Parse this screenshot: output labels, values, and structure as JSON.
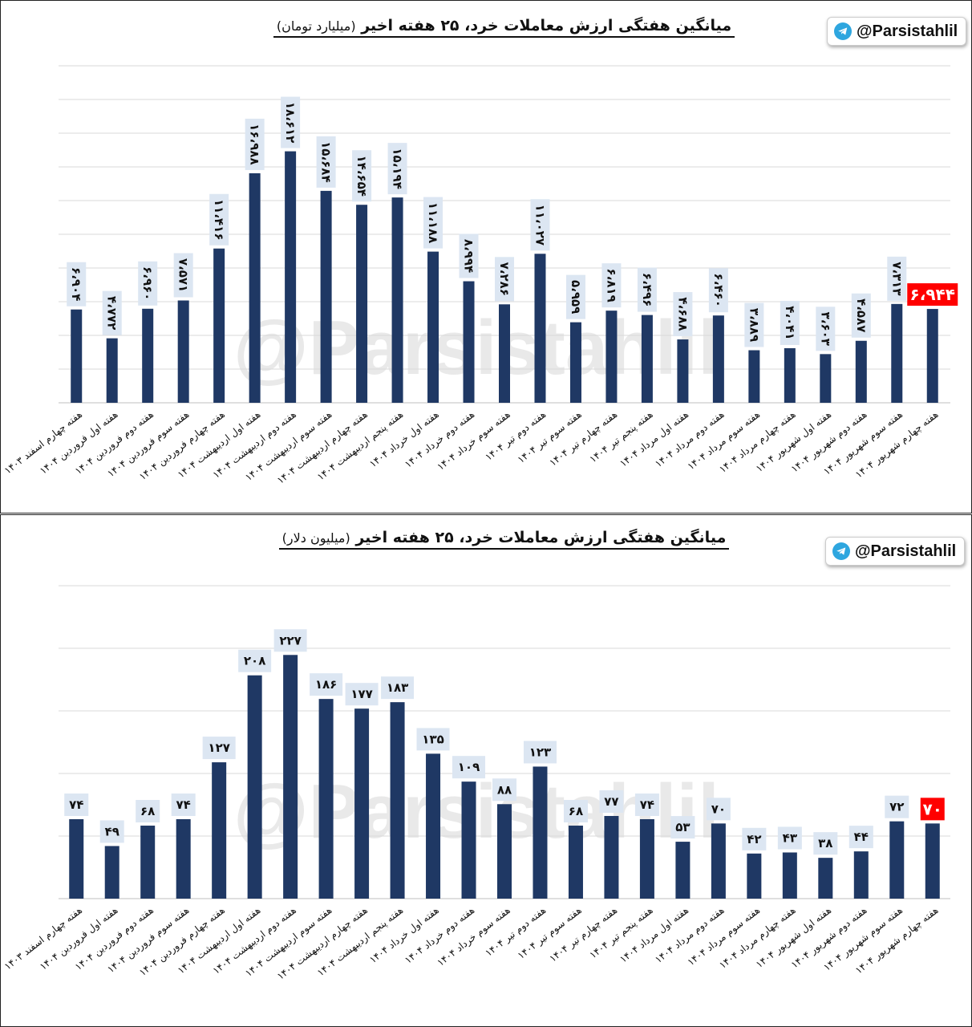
{
  "watermark": "@Parsistahlil",
  "chart_data": [
    {
      "type": "bar",
      "title": "میانگین هفتگی ارزش معاملات خرد، ۲۵ هفته اخیر",
      "unit": "(میلیارد تومان)",
      "channel": "@Parsistahlil",
      "ylim": [
        0,
        25000
      ],
      "grid": true,
      "highlight_index": 24,
      "bar_color": "#1f3864",
      "highlight_color": "#ff0000",
      "categories": [
        "هفته چهارم اسفند ۱۴۰۳",
        "هفته اول فروردین ۱۴۰۴",
        "هفته دوم فروردین ۱۴۰۴",
        "هفته سوم فروردین ۱۴۰۴",
        "هفته چهارم فروردین ۱۴۰۴",
        "هفته اول اردیبهشت ۱۴۰۴",
        "هفته دوم اردیبهشت ۱۴۰۴",
        "هفته سوم اردیبهشت ۱۴۰۴",
        "هفته چهارم اردیبهشت ۱۴۰۴",
        "هفته پنجم اردیبهشت ۱۴۰۴",
        "هفته اول خرداد ۱۴۰۴",
        "هفته دوم خرداد ۱۴۰۴",
        "هفته سوم خرداد ۱۴۰۴",
        "هفته دوم تیر ۱۴۰۴",
        "هفته سوم تیر ۱۴۰۴",
        "هفته چهارم تیر ۱۴۰۴",
        "هفته پنجم تیر ۱۴۰۴",
        "هفته اول مرداد ۱۴۰۴",
        "هفته دوم مرداد ۱۴۰۴",
        "هفته سوم مرداد ۱۴۰۴",
        "هفته چهارم مرداد ۱۴۰۴",
        "هفته اول شهریور ۱۴۰۴",
        "هفته دوم شهریور ۱۴۰۴",
        "هفته سوم شهریور ۱۴۰۴",
        "هفته چهارم شهریور ۱۴۰۴"
      ],
      "values": [
        6904,
        4772,
        6960,
        7571,
        11416,
        16988,
        18612,
        15684,
        14654,
        15194,
        11188,
        8994,
        7286,
        11027,
        5959,
        6819,
        6496,
        4688,
        6460,
        3889,
        4041,
        3603,
        4587,
        7313,
        6944
      ],
      "labels": [
        "۶،۹۰۴",
        "۴،۷۷۲",
        "۶،۹۶۰",
        "۷،۵۷۱",
        "۱۱،۴۱۶",
        "۱۶،۹۸۸",
        "۱۸،۶۱۲",
        "۱۵،۶۸۴",
        "۱۴،۶۵۴",
        "۱۵،۱۹۴",
        "۱۱،۱۸۸",
        "۸،۹۹۴",
        "۷،۲۸۶",
        "۱۱،۰۲۷",
        "۵،۹۵۹",
        "۶،۸۱۹",
        "۶،۴۹۶",
        "۴،۶۸۸",
        "۶،۴۶۰",
        "۳،۸۸۹",
        "۴،۰۴۱",
        "۳،۶۰۳",
        "۴،۵۸۷",
        "۷،۳۱۳",
        "۶،۹۴۴"
      ]
    },
    {
      "type": "bar",
      "title": "میانگین هفتگی ارزش معاملات خرد، ۲۵ هفته اخیر",
      "unit": "(میلیون دلار)",
      "channel": "@Parsistahlil",
      "ylim": [
        0,
        290
      ],
      "grid": true,
      "highlight_index": 24,
      "bar_color": "#1f3864",
      "highlight_color": "#ff0000",
      "categories": [
        "هفته چهارم اسفند ۱۴۰۳",
        "هفته اول فروردین ۱۴۰۴",
        "هفته دوم فروردین ۱۴۰۴",
        "هفته سوم فروردین ۱۴۰۴",
        "هفته چهارم فروردین ۱۴۰۴",
        "هفته اول اردیبهشت ۱۴۰۴",
        "هفته دوم اردیبهشت ۱۴۰۴",
        "هفته سوم اردیبهشت ۱۴۰۴",
        "هفته چهارم اردیبهشت ۱۴۰۴",
        "هفته پنجم اردیبهشت ۱۴۰۴",
        "هفته اول خرداد ۱۴۰۴",
        "هفته دوم خرداد ۱۴۰۴",
        "هفته سوم خرداد ۱۴۰۴",
        "هفته دوم تیر ۱۴۰۴",
        "هفته سوم تیر ۱۴۰۴",
        "هفته چهارم تیر ۱۴۰۴",
        "هفته پنجم تیر ۱۴۰۴",
        "هفته اول مرداد ۱۴۰۴",
        "هفته دوم مرداد ۱۴۰۴",
        "هفته سوم مرداد ۱۴۰۴",
        "هفته چهارم مرداد ۱۴۰۴",
        "هفته اول شهریور ۱۴۰۴",
        "هفته دوم شهریور ۱۴۰۴",
        "هفته سوم شهریور ۱۴۰۴",
        "هفته چهارم شهریور ۱۴۰۴"
      ],
      "values": [
        74,
        49,
        68,
        74,
        127,
        208,
        227,
        186,
        177,
        183,
        135,
        109,
        88,
        123,
        68,
        77,
        74,
        53,
        70,
        42,
        43,
        38,
        44,
        72,
        70
      ],
      "labels": [
        "۷۴",
        "۴۹",
        "۶۸",
        "۷۴",
        "۱۲۷",
        "۲۰۸",
        "۲۲۷",
        "۱۸۶",
        "۱۷۷",
        "۱۸۳",
        "۱۳۵",
        "۱۰۹",
        "۸۸",
        "۱۲۳",
        "۶۸",
        "۷۷",
        "۷۴",
        "۵۳",
        "۷۰",
        "۴۲",
        "۴۳",
        "۳۸",
        "۴۴",
        "۷۲",
        "۷۰"
      ]
    }
  ]
}
